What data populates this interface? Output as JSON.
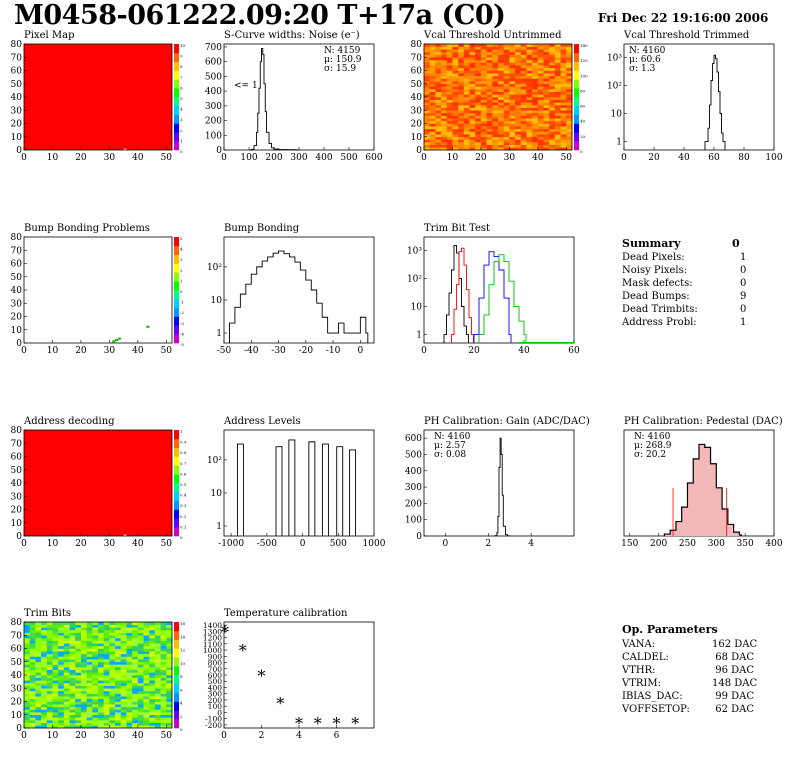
{
  "header": {
    "title": "M0458-061222.09:20 T+17a (C0)",
    "date": "Fri Dec 22 19:16:00 2006"
  },
  "colors": {
    "red": "#ff0000",
    "blue": "#0000ff",
    "green": "#00c000",
    "black": "#000000"
  },
  "chart_data": [
    {
      "id": "pixel-map",
      "type": "heatmap",
      "title": "Pixel Map",
      "xlim": [
        0,
        52
      ],
      "ylim": [
        0,
        80
      ],
      "xticks": [
        "0",
        "10",
        "20",
        "30",
        "40",
        "50"
      ],
      "yticks": [
        "0",
        "10",
        "20",
        "30",
        "40",
        "50",
        "60",
        "70",
        "80"
      ],
      "fill": "uniform-red",
      "colorbar": [
        "10",
        "9",
        "8",
        "7",
        "6",
        "5",
        "4",
        "3",
        "2",
        "1",
        "0"
      ]
    },
    {
      "id": "scurve-widths",
      "type": "bar",
      "title": "S-Curve widths: Noise (e⁻)",
      "xlim": [
        0,
        600
      ],
      "ylim": [
        0,
        720
      ],
      "xticks": [
        "0",
        "100",
        "200",
        "300",
        "400",
        "500",
        "600"
      ],
      "yticks": [
        "0",
        "100",
        "200",
        "300",
        "400",
        "500",
        "600",
        "700"
      ],
      "stats": [
        "N: 4159",
        "μ: 150.9",
        "σ: 15.9"
      ],
      "annotation": "<= 1",
      "x": [
        100,
        110,
        120,
        130,
        135,
        140,
        145,
        150,
        155,
        160,
        165,
        170,
        180,
        190,
        200,
        220,
        250,
        290
      ],
      "values": [
        0,
        5,
        30,
        120,
        250,
        420,
        600,
        690,
        650,
        450,
        260,
        120,
        45,
        15,
        6,
        3,
        2,
        0
      ]
    },
    {
      "id": "vcal-untrimmed",
      "type": "heatmap",
      "title": "Vcal Threshold Untrimmed",
      "xlim": [
        0,
        52
      ],
      "ylim": [
        0,
        80
      ],
      "xticks": [
        "0",
        "10",
        "20",
        "30",
        "40",
        "50"
      ],
      "yticks": [
        "0",
        "10",
        "20",
        "30",
        "40",
        "50",
        "60",
        "70",
        "80"
      ],
      "fill": "noisy-orange",
      "colorbar": [
        "140",
        "120",
        "100",
        "80",
        "60",
        "40",
        "20",
        "0"
      ]
    },
    {
      "id": "vcal-trimmed",
      "type": "bar",
      "title": "Vcal Threshold Trimmed",
      "scale": "log",
      "xlim": [
        0,
        100
      ],
      "ylim": [
        0.5,
        3000
      ],
      "xticks": [
        "0",
        "20",
        "40",
        "60",
        "80",
        "100"
      ],
      "yticks": [
        "1",
        "10",
        "10²",
        "10³"
      ],
      "stats": [
        "N: 4160",
        "μ: 60.6",
        "σ:  1.3"
      ],
      "x": [
        54,
        56,
        57,
        58,
        59,
        60,
        61,
        62,
        63,
        64,
        65,
        66
      ],
      "values": [
        1,
        3,
        20,
        150,
        600,
        1200,
        900,
        300,
        60,
        10,
        2,
        1
      ]
    },
    {
      "id": "bump-problems",
      "type": "heatmap",
      "title": "Bump Bonding Problems",
      "xlim": [
        0,
        52
      ],
      "ylim": [
        0,
        80
      ],
      "xticks": [
        "0",
        "10",
        "20",
        "30",
        "40",
        "50"
      ],
      "yticks": [
        "0",
        "10",
        "20",
        "30",
        "40",
        "50",
        "60",
        "70",
        "80"
      ],
      "fill": "sparse",
      "colorbar": [
        "5",
        "4",
        "3",
        "2",
        "1",
        "0",
        "-1",
        "-2",
        "-3",
        "-4",
        "-5"
      ]
    },
    {
      "id": "bump-bonding",
      "type": "bar",
      "title": "Bump Bonding",
      "scale": "log",
      "xlim": [
        -50,
        5
      ],
      "ylim": [
        0.5,
        800
      ],
      "xticks": [
        "-50",
        "-40",
        "-30",
        "-20",
        "-10",
        "0"
      ],
      "yticks": [
        "1",
        "10",
        "10²"
      ],
      "x": [
        -48,
        -46,
        -44,
        -42,
        -40,
        -38,
        -36,
        -34,
        -32,
        -30,
        -28,
        -26,
        -24,
        -22,
        -20,
        -18,
        -16,
        -14,
        -12,
        -10,
        -8,
        -6,
        -4,
        -2,
        0,
        2
      ],
      "values": [
        2,
        6,
        15,
        30,
        60,
        100,
        150,
        200,
        260,
        300,
        250,
        200,
        140,
        80,
        40,
        20,
        8,
        3,
        1,
        1,
        2,
        1,
        1,
        1,
        3,
        1
      ]
    },
    {
      "id": "trim-bit-test",
      "type": "line",
      "title": "Trim Bit Test",
      "scale": "log",
      "xlim": [
        0,
        60
      ],
      "ylim": [
        0.5,
        3000
      ],
      "xticks": [
        "0",
        "20",
        "40",
        "60"
      ],
      "yticks": [
        "1",
        "10",
        "10²",
        "10³"
      ],
      "series": [
        {
          "color": "#000000",
          "x": [
            8,
            9,
            10,
            11,
            12,
            13,
            14,
            15,
            16,
            17
          ],
          "values": [
            1,
            5,
            30,
            200,
            1500,
            800,
            100,
            10,
            2,
            1
          ]
        },
        {
          "color": "#ff0000",
          "x": [
            11,
            12,
            13,
            14,
            15,
            16,
            17,
            18,
            19
          ],
          "values": [
            1,
            8,
            60,
            900,
            1200,
            300,
            40,
            4,
            1
          ]
        },
        {
          "color": "#0000ff",
          "x": [
            20,
            22,
            24,
            26,
            28,
            30,
            32,
            34
          ],
          "values": [
            1,
            20,
            300,
            900,
            600,
            200,
            20,
            1
          ]
        },
        {
          "color": "#00c000",
          "x": [
            22,
            24,
            26,
            28,
            30,
            32,
            34,
            36,
            38,
            40
          ],
          "values": [
            1,
            5,
            60,
            400,
            700,
            400,
            80,
            10,
            3,
            1
          ]
        }
      ]
    },
    {
      "id": "address-decoding",
      "type": "heatmap",
      "title": "Address decoding",
      "xlim": [
        0,
        52
      ],
      "ylim": [
        0,
        80
      ],
      "xticks": [
        "0",
        "10",
        "20",
        "30",
        "40",
        "50"
      ],
      "yticks": [
        "0",
        "10",
        "20",
        "30",
        "40",
        "50",
        "60",
        "70",
        "80"
      ],
      "fill": "uniform-red",
      "colorbar": [
        "1",
        "0.9",
        "0.8",
        "0.7",
        "0.6",
        "0.5",
        "0.4",
        "0.3",
        "0.2",
        "0.1",
        "0"
      ]
    },
    {
      "id": "address-levels",
      "type": "bar",
      "title": "Address Levels",
      "scale": "log",
      "xlim": [
        -1100,
        1000
      ],
      "ylim": [
        0.5,
        800
      ],
      "xticks": [
        "-1000",
        "-500",
        "0",
        "500",
        "1000"
      ],
      "yticks": [
        "1",
        "10",
        "10²"
      ],
      "x": [
        -870,
        -330,
        -150,
        130,
        320,
        520,
        700
      ],
      "values": [
        300,
        250,
        400,
        350,
        300,
        250,
        200
      ]
    },
    {
      "id": "ph-gain",
      "type": "bar",
      "title": "PH Calibration: Gain (ADC/DAC)",
      "xlim": [
        -1,
        6
      ],
      "ylim": [
        0,
        650
      ],
      "xticks": [
        "0",
        "2",
        "4"
      ],
      "yticks": [
        "0",
        "100",
        "200",
        "300",
        "400",
        "500",
        "600"
      ],
      "stats": [
        "N: 4160",
        "μ: 2.57",
        "σ: 0.08"
      ],
      "x": [
        2.3,
        2.4,
        2.45,
        2.5,
        2.55,
        2.6,
        2.65,
        2.7,
        2.8,
        2.9
      ],
      "values": [
        2,
        20,
        120,
        420,
        600,
        500,
        250,
        60,
        8,
        1
      ]
    },
    {
      "id": "ph-pedestal",
      "type": "bar",
      "title": "PH Calibration: Pedestal (DAC)",
      "xlim": [
        140,
        400
      ],
      "ylim": [
        0,
        110
      ],
      "xticks": [
        "150",
        "200",
        "250",
        "300",
        "350",
        "400"
      ],
      "yticks": [],
      "stats": [
        "N: 4160",
        "μ: 268.9",
        "σ: 20.2"
      ],
      "x": [
        210,
        220,
        230,
        240,
        250,
        260,
        270,
        280,
        290,
        300,
        310,
        320,
        330,
        340
      ],
      "values": [
        2,
        6,
        15,
        30,
        55,
        80,
        95,
        92,
        75,
        50,
        28,
        12,
        4,
        1
      ]
    },
    {
      "id": "trim-bits",
      "type": "heatmap",
      "title": "Trim Bits",
      "xlim": [
        0,
        52
      ],
      "ylim": [
        0,
        80
      ],
      "xticks": [
        "0",
        "10",
        "20",
        "30",
        "40",
        "50"
      ],
      "yticks": [
        "0",
        "10",
        "20",
        "30",
        "40",
        "50",
        "60",
        "70",
        "80"
      ],
      "fill": "noisy-green",
      "colorbar": [
        "16",
        "14",
        "12",
        "10",
        "8",
        "6",
        "4",
        "2",
        "0"
      ]
    },
    {
      "id": "temperature-calibration",
      "type": "scatter",
      "title": "Temperature calibration",
      "xlim": [
        0,
        8
      ],
      "ylim": [
        -250,
        1450
      ],
      "xticks": [
        "0",
        "2",
        "4",
        "6"
      ],
      "yticks": [
        "-200",
        "-100",
        "0",
        "100",
        "200",
        "300",
        "400",
        "500",
        "600",
        "700",
        "800",
        "900",
        "1000",
        "1100",
        "1200",
        "1300",
        "1400"
      ],
      "x": [
        0,
        1,
        2,
        3,
        4,
        5,
        6,
        7
      ],
      "values": [
        1300,
        1000,
        590,
        150,
        -170,
        -170,
        -170,
        -170
      ]
    }
  ],
  "summary": {
    "title": "Summary",
    "total": "0",
    "rows": [
      {
        "label": "Dead Pixels:",
        "value": "1"
      },
      {
        "label": "Noisy Pixels:",
        "value": "0"
      },
      {
        "label": "Mask defects:",
        "value": "0"
      },
      {
        "label": "Dead Bumps:",
        "value": "9"
      },
      {
        "label": "Dead Trimbits:",
        "value": "0"
      },
      {
        "label": "Address Probl:",
        "value": "1"
      }
    ]
  },
  "op_params": {
    "title": "Op. Parameters",
    "rows": [
      {
        "label": "VANA:",
        "value": "162 DAC"
      },
      {
        "label": "CALDEL:",
        "value": "68 DAC"
      },
      {
        "label": "VTHR:",
        "value": "96 DAC"
      },
      {
        "label": "VTRIM:",
        "value": "148 DAC"
      },
      {
        "label": "IBIAS_DAC:",
        "value": "99 DAC"
      },
      {
        "label": "VOFFSETOP:",
        "value": "62 DAC"
      }
    ]
  }
}
